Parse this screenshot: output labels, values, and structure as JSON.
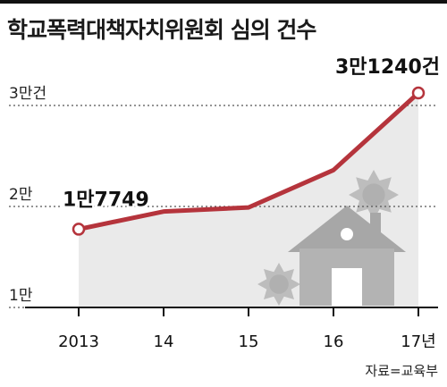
{
  "title": "학교폭력대책자치위원회 심의 건수",
  "source": "자료=교육부",
  "chart_data": {
    "type": "line",
    "title": "학교폭력대책자치위원회 심의 건수",
    "categories": [
      "2013",
      "14",
      "15",
      "16",
      "17년"
    ],
    "series": [
      {
        "values": [
          17749,
          19500,
          19900,
          23600,
          31240
        ]
      }
    ],
    "y_ticks": [
      {
        "value": 10000,
        "label": "1만"
      },
      {
        "value": 20000,
        "label": "2만"
      },
      {
        "value": 30000,
        "label": "3만건"
      }
    ],
    "ylim": [
      10000,
      30000
    ],
    "annotations": [
      {
        "index": 0,
        "label": "1만7749"
      },
      {
        "index": 4,
        "label": "3만1240건"
      }
    ],
    "grid": "dotted-horizontal",
    "colors": {
      "line": "#b5343c",
      "marker_fill": "#ffffff",
      "area": "#d8d8d8",
      "grid": "#555555"
    },
    "decoration": "house-illustration"
  }
}
